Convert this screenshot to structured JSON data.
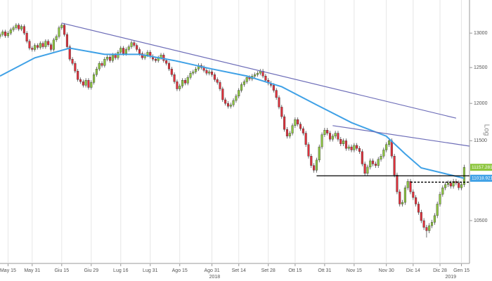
{
  "chart_data": {
    "type": "candlestick",
    "y_scale": "log",
    "grid": "x",
    "y_axis_label": "Log",
    "xlim": [
      0,
      175
    ],
    "ylim": [
      10000,
      13500
    ],
    "xticks": [
      {
        "value": 3,
        "label": "May 15"
      },
      {
        "value": 12,
        "label": "May 31"
      },
      {
        "value": 23,
        "label": "Giu 15"
      },
      {
        "value": 34,
        "label": "Giu 29"
      },
      {
        "value": 45,
        "label": "Lug 16"
      },
      {
        "value": 56,
        "label": "Lug 31"
      },
      {
        "value": 67,
        "label": "Ago 15"
      },
      {
        "value": 79,
        "label": "Ago 31"
      },
      {
        "value": 89,
        "label": "Set 14"
      },
      {
        "value": 100,
        "label": "Set 28"
      },
      {
        "value": 110,
        "label": "Ott 15"
      },
      {
        "value": 121,
        "label": "Ott 31"
      },
      {
        "value": 132,
        "label": "Nov 15"
      },
      {
        "value": 144,
        "label": "Nov 30"
      },
      {
        "value": 154,
        "label": "Dic 14"
      },
      {
        "value": 164,
        "label": "Dic 28"
      },
      {
        "value": 172,
        "label": "Gen 15"
      }
    ],
    "year_labels": [
      {
        "value": 80,
        "label": "2018"
      },
      {
        "value": 168,
        "label": "2019"
      }
    ],
    "yticks": [
      13000,
      12500,
      12000,
      11500,
      11000,
      10500
    ],
    "up_color": "#8dc63f",
    "down_color": "#e0303b",
    "open": [
      12950,
      12980,
      13020,
      12960,
      13000,
      13050,
      13080,
      13120,
      13060,
      13100,
      13000,
      12880,
      12780,
      12760,
      12820,
      12790,
      12850,
      12800,
      12880,
      12830,
      12760,
      12900,
      12950,
      13080,
      13120,
      12980,
      12800,
      12620,
      12560,
      12450,
      12330,
      12300,
      12250,
      12320,
      12220,
      12290,
      12400,
      12480,
      12560,
      12530,
      12620,
      12650,
      12600,
      12680,
      12640,
      12720,
      12780,
      12700,
      12760,
      12800,
      12860,
      12820,
      12760,
      12700,
      12640,
      12680,
      12720,
      12660,
      12620,
      12600,
      12640,
      12680,
      12600,
      12560,
      12480,
      12400,
      12300,
      12200,
      12240,
      12320,
      12280,
      12360,
      12420,
      12440,
      12480,
      12530,
      12500,
      12460,
      12420,
      12440,
      12400,
      12330,
      12290,
      12200,
      12050,
      12000,
      11960,
      11980,
      12040,
      12100,
      12180,
      12260,
      12300,
      12360,
      12340,
      12380,
      12400,
      12420,
      12450,
      12380,
      12320,
      12280,
      12250,
      12180,
      12080,
      11950,
      11820,
      11650,
      11560,
      11600,
      11700,
      11780,
      11720,
      11660,
      11600,
      11450,
      11300,
      11180,
      11120,
      11250,
      11420,
      11580,
      11640,
      11600,
      11520,
      11560,
      11600,
      11520,
      11460,
      11500,
      11400,
      11420,
      11380,
      11440,
      11400,
      11360,
      11200,
      11080,
      11160,
      11240,
      11200,
      11180,
      11260,
      11300,
      11380,
      11450,
      11500,
      11300,
      11060,
      10850,
      10700,
      10720,
      10900,
      10980,
      10850,
      10780,
      10700,
      10600,
      10500,
      10420,
      10380,
      10440,
      10480,
      10560,
      10700,
      10820,
      10900,
      10940,
      10960,
      10920,
      10980,
      10960,
      10900,
      10940
    ],
    "high": [
      13010,
      13050,
      13050,
      13030,
      13080,
      13110,
      13150,
      13150,
      13130,
      13130,
      13030,
      12910,
      12810,
      12850,
      12850,
      12880,
      12880,
      12910,
      12910,
      12860,
      12930,
      12980,
      13110,
      13150,
      13150,
      13010,
      12830,
      12650,
      12590,
      12480,
      12360,
      12330,
      12350,
      12350,
      12320,
      12430,
      12510,
      12590,
      12590,
      12650,
      12680,
      12680,
      12710,
      12710,
      12750,
      12810,
      12810,
      12790,
      12830,
      12890,
      12890,
      12850,
      12790,
      12730,
      12710,
      12750,
      12750,
      12690,
      12650,
      12670,
      12710,
      12710,
      12630,
      12590,
      12510,
      12430,
      12330,
      12270,
      12350,
      12350,
      12390,
      12450,
      12470,
      12510,
      12560,
      12560,
      12530,
      12490,
      12470,
      12470,
      12430,
      12360,
      12320,
      12230,
      12080,
      12030,
      12010,
      12070,
      12130,
      12210,
      12290,
      12330,
      12390,
      12390,
      12410,
      12430,
      12450,
      12480,
      12480,
      12410,
      12350,
      12310,
      12280,
      12210,
      12110,
      11980,
      11850,
      11680,
      11630,
      11730,
      11810,
      11810,
      11750,
      11690,
      11630,
      11480,
      11330,
      11210,
      11280,
      11450,
      11610,
      11670,
      11670,
      11630,
      11590,
      11630,
      11630,
      11550,
      11530,
      11530,
      11450,
      11450,
      11470,
      11470,
      11430,
      11390,
      11230,
      11190,
      11270,
      11270,
      11230,
      11290,
      11330,
      11410,
      11480,
      11530,
      11530,
      11330,
      11090,
      10880,
      10750,
      10930,
      11010,
      11010,
      10880,
      10810,
      10730,
      10630,
      10530,
      10450,
      10470,
      10510,
      10590,
      10730,
      10850,
      10930,
      10970,
      10990,
      10990,
      11010,
      11010,
      10990,
      10970,
      11190
    ],
    "low": [
      12920,
      12950,
      12930,
      12930,
      12970,
      13020,
      13050,
      13030,
      13030,
      12970,
      12850,
      12750,
      12730,
      12730,
      12760,
      12760,
      12770,
      12770,
      12800,
      12730,
      12730,
      12870,
      12920,
      13050,
      12950,
      12770,
      12590,
      12530,
      12420,
      12300,
      12270,
      12220,
      12220,
      12190,
      12190,
      12260,
      12370,
      12450,
      12500,
      12500,
      12590,
      12570,
      12570,
      12610,
      12610,
      12690,
      12670,
      12670,
      12730,
      12770,
      12790,
      12730,
      12670,
      12610,
      12610,
      12650,
      12630,
      12590,
      12570,
      12570,
      12610,
      12570,
      12530,
      12450,
      12370,
      12270,
      12170,
      12170,
      12210,
      12250,
      12250,
      12330,
      12390,
      12410,
      12450,
      12470,
      12430,
      12390,
      12390,
      12370,
      12300,
      12260,
      12170,
      12020,
      11970,
      11930,
      11930,
      11950,
      12010,
      12070,
      12150,
      12230,
      12270,
      12310,
      12310,
      12350,
      12370,
      12390,
      12350,
      12290,
      12250,
      12220,
      12150,
      12050,
      11920,
      11790,
      11620,
      11530,
      11530,
      11570,
      11670,
      11690,
      11630,
      11570,
      11420,
      11270,
      11150,
      11090,
      11090,
      11220,
      11390,
      11550,
      11570,
      11490,
      11490,
      11530,
      11490,
      11430,
      11430,
      11370,
      11370,
      11350,
      11350,
      11370,
      11330,
      11170,
      11050,
      11050,
      11130,
      11170,
      11150,
      11150,
      11230,
      11270,
      11350,
      11420,
      11270,
      11030,
      10820,
      10670,
      10670,
      10690,
      10870,
      10820,
      10750,
      10670,
      10570,
      10470,
      10390,
      10300,
      10350,
      10410,
      10450,
      10530,
      10670,
      10790,
      10870,
      10910,
      10890,
      10890,
      10930,
      10870,
      10870,
      10910
    ],
    "close": [
      12980,
      13020,
      12960,
      13000,
      13050,
      13080,
      13120,
      13060,
      13100,
      13000,
      12880,
      12780,
      12760,
      12820,
      12790,
      12850,
      12800,
      12880,
      12830,
      12760,
      12900,
      12950,
      13080,
      13120,
      12980,
      12800,
      12620,
      12560,
      12450,
      12330,
      12300,
      12250,
      12320,
      12220,
      12290,
      12400,
      12480,
      12560,
      12530,
      12620,
      12650,
      12600,
      12680,
      12640,
      12720,
      12780,
      12700,
      12760,
      12800,
      12860,
      12820,
      12760,
      12700,
      12640,
      12680,
      12720,
      12660,
      12620,
      12600,
      12640,
      12680,
      12600,
      12560,
      12480,
      12400,
      12300,
      12200,
      12240,
      12320,
      12280,
      12360,
      12420,
      12440,
      12480,
      12530,
      12500,
      12460,
      12420,
      12440,
      12400,
      12330,
      12290,
      12200,
      12050,
      12000,
      11960,
      11980,
      12040,
      12100,
      12180,
      12260,
      12300,
      12360,
      12340,
      12380,
      12400,
      12420,
      12450,
      12380,
      12320,
      12280,
      12250,
      12180,
      12080,
      11950,
      11820,
      11650,
      11560,
      11600,
      11700,
      11780,
      11720,
      11660,
      11600,
      11450,
      11300,
      11180,
      11120,
      11250,
      11420,
      11580,
      11640,
      11600,
      11520,
      11560,
      11600,
      11520,
      11460,
      11500,
      11400,
      11420,
      11380,
      11440,
      11400,
      11360,
      11200,
      11080,
      11160,
      11240,
      11200,
      11180,
      11260,
      11300,
      11380,
      11450,
      11500,
      11300,
      11060,
      10850,
      10700,
      10720,
      10900,
      10980,
      10850,
      10780,
      10700,
      10600,
      10500,
      10420,
      10380,
      10440,
      10480,
      10560,
      10700,
      10820,
      10900,
      10940,
      10960,
      10920,
      10980,
      10960,
      10900,
      10940,
      11157.281
    ],
    "ma": {
      "color": "#3fa1e6",
      "x": [
        0,
        13,
        26,
        39,
        52,
        65,
        79,
        92,
        105,
        118,
        131,
        144,
        151,
        157,
        168,
        173
      ],
      "values": [
        12380,
        12640,
        12780,
        12690,
        12690,
        12600,
        12480,
        12380,
        12230,
        11980,
        11740,
        11560,
        11330,
        11150,
        11060,
        11018.921
      ]
    },
    "trendlines": [
      {
        "color": "#6d6db8",
        "style": "solid",
        "x": [
          23,
          170
        ],
        "y": [
          13150,
          11800
        ]
      },
      {
        "color": "#6d6db8",
        "style": "solid",
        "x": [
          124,
          175
        ],
        "y": [
          11700,
          11430
        ]
      },
      {
        "color": "#000000",
        "style": "solid",
        "x": [
          118,
          175
        ],
        "y": [
          11050,
          11050
        ]
      },
      {
        "color": "#000000",
        "style": "dashed",
        "x": [
          153,
          175
        ],
        "y": [
          10970,
          10970
        ]
      }
    ],
    "price_labels": [
      {
        "value": 11157.281,
        "color": "#8dc63f"
      },
      {
        "value": 11018.921,
        "color": "#3fa1e6"
      }
    ]
  }
}
